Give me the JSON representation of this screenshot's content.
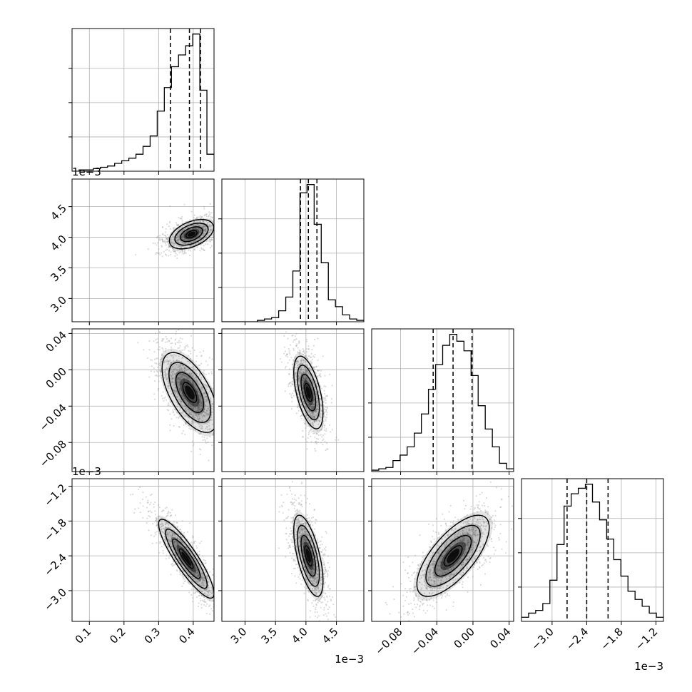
{
  "chart_data": {
    "type": "corner",
    "title": "",
    "grid": true,
    "colors": {
      "line": "#000000",
      "grid": "#b0b0b0",
      "points": "#9a9a9a",
      "density": "#000000"
    },
    "parameters": [
      {
        "index": 0,
        "range": [
          0.05,
          0.46
        ],
        "axis_ticks": [
          0.1,
          0.2,
          0.3,
          0.4
        ],
        "axis_tick_labels": [
          "0.1",
          "0.2",
          "0.3",
          "0.4"
        ],
        "offset_label": "1e−3",
        "quantiles": [
          0.334,
          0.389,
          0.421
        ]
      },
      {
        "index": 1,
        "range": [
          2.62,
          4.95
        ],
        "axis_ticks": [
          3.0,
          3.5,
          4.0,
          4.5
        ],
        "axis_tick_labels": [
          "3.0",
          "3.5",
          "4.0",
          "4.5"
        ],
        "offset_label": "1e−3",
        "quantiles": [
          3.91,
          4.04,
          4.18
        ]
      },
      {
        "index": 2,
        "range": [
          -0.112,
          0.045
        ],
        "axis_ticks": [
          -0.08,
          -0.04,
          0.0,
          0.04
        ],
        "axis_tick_labels": [
          "−0.08",
          "−0.04",
          "0.00",
          "0.04"
        ],
        "offset_label": "1e−3",
        "quantiles": [
          -0.044,
          -0.022,
          -0.001
        ]
      },
      {
        "index": 3,
        "range": [
          -3.53,
          -1.07
        ],
        "axis_ticks": [
          -3.0,
          -2.4,
          -1.8,
          -1.2
        ],
        "axis_tick_labels": [
          "−3.0",
          "−2.4",
          "−1.8",
          "−1.2"
        ],
        "offset_label": "1e−3",
        "quantiles": [
          -2.74,
          -2.4,
          -2.03
        ]
      }
    ],
    "histograms": [
      {
        "param": 0,
        "bins": 20,
        "counts": [
          0,
          1,
          1,
          2,
          3,
          4,
          6,
          8,
          10,
          13,
          19,
          27,
          46,
          64,
          80,
          89,
          96,
          105,
          62,
          13
        ]
      },
      {
        "param": 1,
        "bins": 20,
        "counts": [
          0,
          0,
          0,
          0,
          0,
          1,
          2,
          3,
          8,
          18,
          37,
          94,
          100,
          71,
          43,
          16,
          11,
          5,
          2,
          1
        ]
      },
      {
        "param": 2,
        "bins": 20,
        "counts": [
          1,
          2,
          3,
          8,
          12,
          18,
          28,
          42,
          60,
          78,
          92,
          100,
          95,
          88,
          70,
          48,
          31,
          18,
          6,
          2
        ]
      },
      {
        "param": 3,
        "bins": 20,
        "counts": [
          3,
          6,
          8,
          13,
          30,
          56,
          84,
          93,
          97,
          100,
          87,
          74,
          60,
          45,
          33,
          22,
          16,
          11,
          6,
          3
        ]
      }
    ],
    "pairs": [
      {
        "x_param": 0,
        "y_param": 1,
        "center": [
          0.395,
          4.05
        ],
        "sd": [
          0.032,
          0.12
        ],
        "corr": 0.45
      },
      {
        "x_param": 0,
        "y_param": 2,
        "center": [
          0.39,
          -0.025
        ],
        "sd": [
          0.04,
          0.022
        ],
        "corr": -0.6
      },
      {
        "x_param": 0,
        "y_param": 3,
        "center": [
          0.38,
          -2.45
        ],
        "sd": [
          0.04,
          0.34
        ],
        "corr": -0.88
      },
      {
        "x_param": 1,
        "y_param": 2,
        "center": [
          4.04,
          -0.025
        ],
        "sd": [
          0.12,
          0.02
        ],
        "corr": -0.55
      },
      {
        "x_param": 1,
        "y_param": 3,
        "center": [
          4.04,
          -2.4
        ],
        "sd": [
          0.12,
          0.35
        ],
        "corr": -0.62
      },
      {
        "x_param": 2,
        "y_param": 3,
        "center": [
          -0.022,
          -2.4
        ],
        "sd": [
          0.02,
          0.35
        ],
        "corr": 0.7
      }
    ]
  }
}
